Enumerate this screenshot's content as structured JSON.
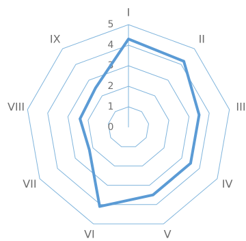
{
  "chart_data": {
    "type": "radar",
    "categories": [
      "I",
      "II",
      "III",
      "IV",
      "V",
      "VI",
      "VII",
      "VIII",
      "IX"
    ],
    "ticks": [
      "0",
      "1",
      "2",
      "3",
      "4",
      "5"
    ],
    "rmax": 5,
    "series": [
      {
        "values": [
          4.3,
          4.2,
          3.5,
          3.5,
          3.5,
          4.1,
          2.2,
          2.4,
          2.5
        ],
        "color": "#5b9bd5"
      }
    ],
    "grid_color": "#7fb4dc",
    "label_color": "#6d6d6d",
    "grid": true,
    "legend": "none"
  }
}
